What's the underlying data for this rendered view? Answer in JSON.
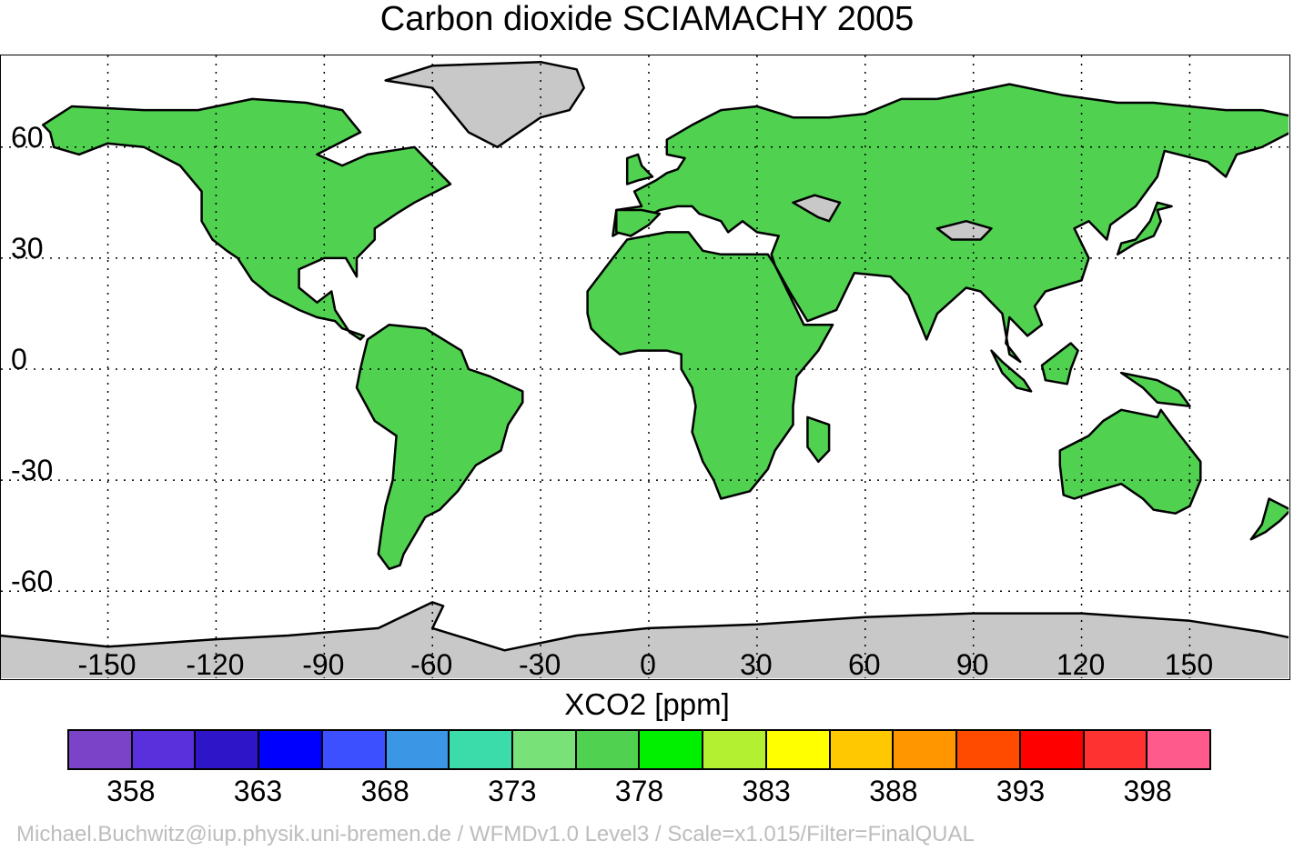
{
  "title": "Carbon dioxide SCIAMACHY 2005",
  "x_ticks": [
    "-150",
    "-120",
    "-90",
    "-60",
    "-30",
    "0",
    "30",
    "60",
    "90",
    "120",
    "150"
  ],
  "y_ticks": [
    "60",
    "30",
    "0",
    "-30",
    "-60"
  ],
  "colorbar": {
    "label": "XCO2 [ppm]",
    "colors": [
      "#7b44c8",
      "#5a2fdc",
      "#2e16c8",
      "#0000ff",
      "#3c50ff",
      "#3c96e6",
      "#3cdcaa",
      "#78e178",
      "#50d250",
      "#00f000",
      "#b4f032",
      "#ffff00",
      "#ffc800",
      "#ff9600",
      "#ff4b00",
      "#ff0000",
      "#ff3232",
      "#ff5a8c"
    ],
    "tick_labels": [
      "358",
      "363",
      "368",
      "373",
      "378",
      "383",
      "388",
      "393",
      "398"
    ]
  },
  "map": {
    "ocean_color": "#ffffff",
    "no_data_color": "#c8c8c8",
    "land_base_color": "#50d250",
    "coastline_color": "#000000",
    "grid": "dotted"
  },
  "credit": "Michael.Buchwitz@iup.physik.uni-bremen.de / WFMDv1.0 Level3 / Scale=x1.015/Filter=FinalQUAL"
}
